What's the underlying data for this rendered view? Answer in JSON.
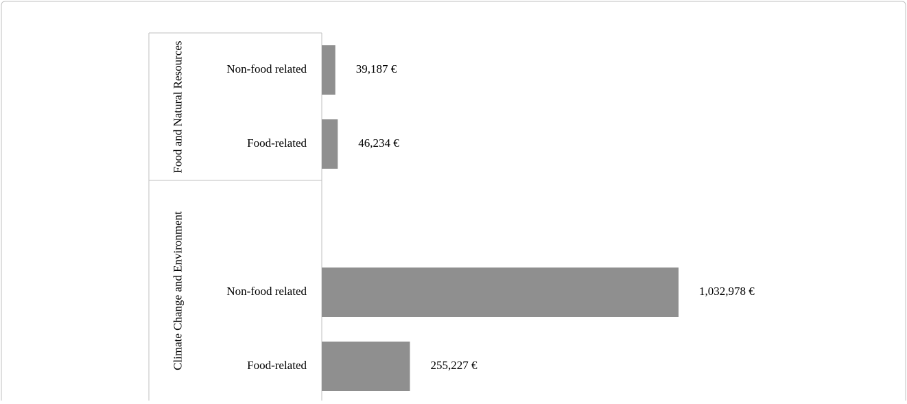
{
  "chart_data": {
    "type": "bar",
    "orientation": "horizontal",
    "color": "#8f8f8f",
    "groups": [
      {
        "name": "Food and Natural Resources",
        "categories": [
          "Non-food related",
          "Food-related"
        ],
        "values": [
          39187,
          46234
        ],
        "value_labels": [
          "39,187 €",
          "46,234 €"
        ]
      },
      {
        "name": "Climate Change and Environment",
        "categories": [
          "Non-food related",
          "Food-related"
        ],
        "values": [
          1032978,
          255227
        ],
        "value_labels": [
          "1,032,978 €",
          "255,227 €"
        ]
      }
    ]
  }
}
